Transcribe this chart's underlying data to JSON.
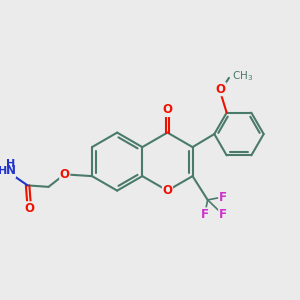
{
  "bg_color": "#ebebeb",
  "bond_color": "#4a7a6a",
  "oxygen_color": "#ee1100",
  "nitrogen_color": "#2233cc",
  "fluorine_color": "#cc33cc",
  "line_width": 1.5,
  "fig_width": 3.0,
  "fig_height": 3.0,
  "xlim": [
    0,
    10
  ],
  "ylim": [
    0,
    10
  ]
}
